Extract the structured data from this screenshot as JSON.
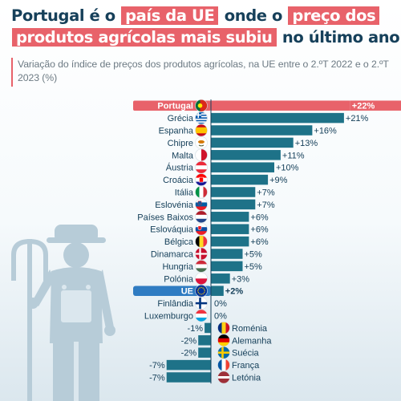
{
  "title": {
    "parts": [
      {
        "text": "Portugal é o",
        "hl": false
      },
      {
        "text": "país da UE",
        "hl": true
      },
      {
        "text": "onde o",
        "hl": false
      },
      {
        "text": "preço dos",
        "hl": true
      },
      {
        "text": "produtos agrícolas mais subiu",
        "hl": true
      },
      {
        "text": "no último ano",
        "hl": false
      }
    ]
  },
  "subtitle": "Variação do índice de preços dos produtos agrícolas, na UE entre o 2.ºT 2022 e o 2.ºT 2023 (%)",
  "colors": {
    "bar": "#1e7288",
    "highlight": "#e8626a",
    "eu_label": "#2f7cc2",
    "text": "#16405a",
    "title_highlight": "#e8626a"
  },
  "chart_data": {
    "type": "bar",
    "orientation": "horizontal",
    "unit": "%",
    "categories": [
      "Portugal",
      "Grécia",
      "Espanha",
      "Chipre",
      "Malta",
      "Áustria",
      "Croácia",
      "Itália",
      "Eslovénia",
      "Países Baixos",
      "Eslováquia",
      "Bélgica",
      "Dinamarca",
      "Hungria",
      "Polónia",
      "UE",
      "Finlândia",
      "Luxemburgo",
      "Roménia",
      "Alemanha",
      "Suécia",
      "França",
      "Letónia"
    ],
    "values": [
      22,
      21,
      16,
      13,
      11,
      10,
      9,
      7,
      7,
      6,
      6,
      6,
      5,
      5,
      3,
      2,
      0,
      0,
      -1,
      -2,
      -2,
      -7,
      -7
    ],
    "value_labels": [
      "+22%",
      "+21%",
      "+16%",
      "+13%",
      "+11%",
      "+10%",
      "+9%",
      "+7%",
      "+7%",
      "+6%",
      "+6%",
      "+6%",
      "+5%",
      "+5%",
      "+3%",
      "+2%",
      "0%",
      "0%",
      "-1%",
      "-2%",
      "-2%",
      "-7%",
      "-7%"
    ],
    "highlight": {
      "Portugal": "highlight",
      "UE": "eu"
    },
    "flags": [
      "portugal-flag",
      "greece-flag",
      "spain-flag",
      "cyprus-flag",
      "malta-flag",
      "austria-flag",
      "croatia-flag",
      "italy-flag",
      "slovenia-flag",
      "netherlands-flag",
      "slovakia-flag",
      "belgium-flag",
      "denmark-flag",
      "hungary-flag",
      "poland-flag",
      "eu-flag",
      "finland-flag",
      "luxembourg-flag",
      "romania-flag",
      "germany-flag",
      "sweden-flag",
      "france-flag",
      "latvia-flag"
    ],
    "xlim": [
      -8,
      22
    ]
  }
}
